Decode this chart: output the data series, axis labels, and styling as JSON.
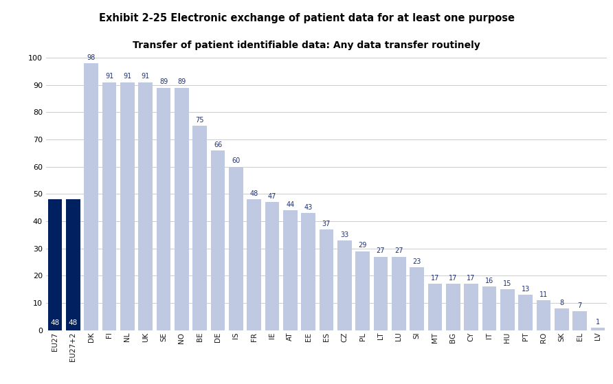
{
  "title_banner": "Exhibit 2-25 Electronic exchange of patient data for at least one purpose",
  "subtitle": "Transfer of patient identifiable data: Any data transfer routinely",
  "categories": [
    "EU27",
    "EU27+2",
    "DK",
    "FI",
    "NL",
    "UK",
    "SE",
    "NO",
    "BE",
    "DE",
    "IS",
    "FR",
    "IE",
    "AT",
    "EE",
    "ES",
    "CZ",
    "PL",
    "LT",
    "LU",
    "SI",
    "MT",
    "BG",
    "CY",
    "IT",
    "HU",
    "PT",
    "RO",
    "SK",
    "EL",
    "LV"
  ],
  "values": [
    48,
    48,
    98,
    91,
    91,
    91,
    89,
    89,
    75,
    66,
    60,
    48,
    47,
    44,
    43,
    37,
    33,
    29,
    27,
    27,
    23,
    17,
    17,
    17,
    16,
    15,
    13,
    11,
    8,
    7,
    1
  ],
  "dark_bar_color": "#002060",
  "light_bar_color": "#bfc9e2",
  "banner_bg": "#c5caeb",
  "banner_text_color": "#000000",
  "subtitle_color": "#000000",
  "label_color_dark": "#ffffff",
  "label_color_light": "#1f3070",
  "ylim": [
    0,
    100
  ],
  "yticks": [
    0,
    10,
    20,
    30,
    40,
    50,
    60,
    70,
    80,
    90,
    100
  ],
  "grid_color": "#cccccc",
  "background_color": "#ffffff",
  "dark_categories": [
    "EU27",
    "EU27+2"
  ]
}
